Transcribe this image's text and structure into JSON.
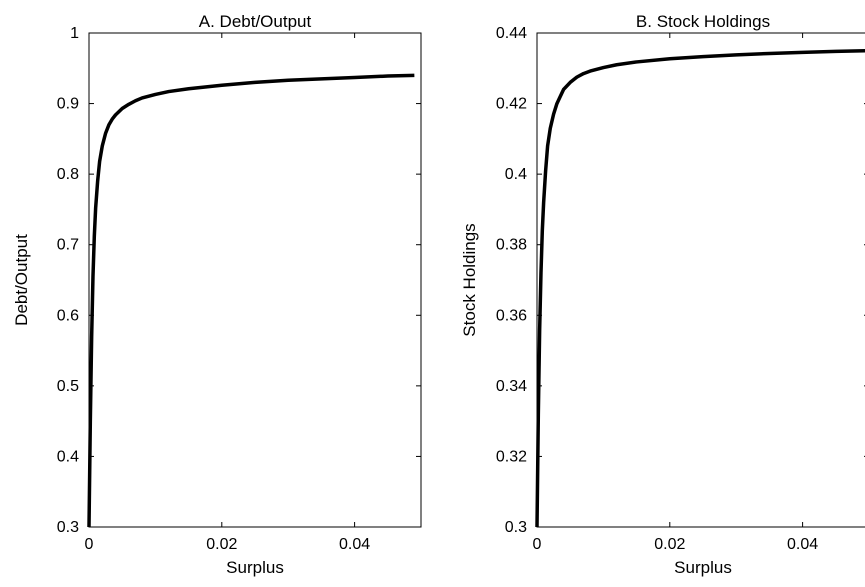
{
  "chart_data": [
    {
      "type": "line",
      "title": "A. Debt/Output",
      "xlabel": "Surplus",
      "ylabel": "Debt/Output",
      "xlim": [
        0,
        0.05
      ],
      "ylim": [
        0.3,
        1
      ],
      "xticks": [
        "0",
        "0.02",
        "0.04"
      ],
      "xtick_values": [
        0,
        0.02,
        0.04
      ],
      "yticks": [
        "0.3",
        "0.4",
        "0.5",
        "0.6",
        "0.7",
        "0.8",
        "0.9",
        "1"
      ],
      "ytick_values": [
        0.3,
        0.4,
        0.5,
        0.6,
        0.7,
        0.8,
        0.9,
        1.0
      ],
      "grid": false,
      "line_color": "#000000",
      "series": [
        {
          "x": [
            0.0,
            0.0002,
            0.0004,
            0.0006,
            0.0008,
            0.001,
            0.0013,
            0.0016,
            0.002,
            0.0025,
            0.003,
            0.0035,
            0.004,
            0.005,
            0.006,
            0.007,
            0.008,
            0.01,
            0.012,
            0.015,
            0.02,
            0.025,
            0.03,
            0.035,
            0.04,
            0.045,
            0.049
          ],
          "y": [
            0.3,
            0.45,
            0.57,
            0.655,
            0.712,
            0.752,
            0.79,
            0.818,
            0.84,
            0.858,
            0.87,
            0.878,
            0.884,
            0.893,
            0.899,
            0.904,
            0.908,
            0.913,
            0.917,
            0.921,
            0.926,
            0.93,
            0.933,
            0.935,
            0.937,
            0.939,
            0.94
          ]
        }
      ]
    },
    {
      "type": "line",
      "title": "B. Stock Holdings",
      "xlabel": "Surplus",
      "ylabel": "Stock Holdings",
      "xlim": [
        0,
        0.05
      ],
      "ylim": [
        0.3,
        0.44
      ],
      "xticks": [
        "0",
        "0.02",
        "0.04"
      ],
      "xtick_values": [
        0,
        0.02,
        0.04
      ],
      "yticks": [
        "0.3",
        "0.32",
        "0.34",
        "0.36",
        "0.38",
        "0.4",
        "0.42",
        "0.44"
      ],
      "ytick_values": [
        0.3,
        0.32,
        0.34,
        0.36,
        0.38,
        0.4,
        0.42,
        0.44
      ],
      "grid": false,
      "line_color": "#000000",
      "series": [
        {
          "x": [
            0.0,
            0.0002,
            0.0004,
            0.0006,
            0.0008,
            0.001,
            0.0013,
            0.0016,
            0.002,
            0.0025,
            0.003,
            0.0035,
            0.004,
            0.005,
            0.006,
            0.007,
            0.008,
            0.01,
            0.012,
            0.015,
            0.02,
            0.025,
            0.03,
            0.035,
            0.04,
            0.045,
            0.05
          ],
          "y": [
            0.3,
            0.332,
            0.356,
            0.372,
            0.384,
            0.392,
            0.401,
            0.408,
            0.413,
            0.417,
            0.42,
            0.422,
            0.424,
            0.426,
            0.4275,
            0.4285,
            0.4292,
            0.4302,
            0.431,
            0.4318,
            0.4327,
            0.4333,
            0.4338,
            0.4342,
            0.4345,
            0.4348,
            0.435
          ]
        }
      ]
    }
  ]
}
